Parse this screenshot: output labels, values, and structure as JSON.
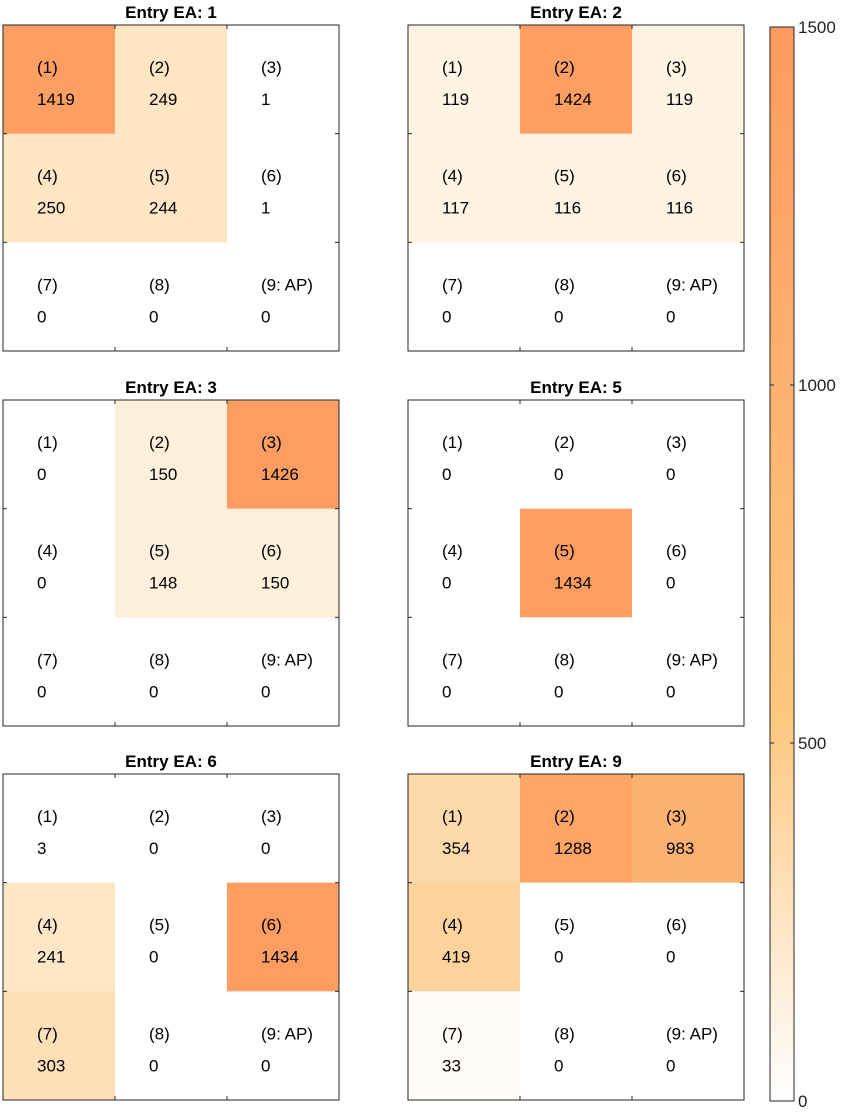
{
  "chart_data": {
    "type": "heatmap",
    "colorbar": {
      "range": [
        0,
        1500
      ],
      "ticks": [
        "0",
        "500",
        "1000",
        "1500"
      ],
      "tick_values": [
        0,
        500,
        1000,
        1500
      ],
      "colors": [
        "#ffffff",
        "#fdc882",
        "#fd9a5f"
      ]
    },
    "grid_labels": [
      "(1)",
      "(2)",
      "(3)",
      "(4)",
      "(5)",
      "(6)",
      "(7)",
      "(8)",
      "(9: AP)"
    ],
    "panels": [
      {
        "title": "Entry EA: 1",
        "values": [
          1419,
          249,
          1,
          250,
          244,
          1,
          0,
          0,
          0
        ]
      },
      {
        "title": "Entry EA: 2",
        "values": [
          119,
          1424,
          119,
          117,
          116,
          116,
          0,
          0,
          0
        ]
      },
      {
        "title": "Entry EA: 3",
        "values": [
          0,
          150,
          1426,
          0,
          148,
          150,
          0,
          0,
          0
        ]
      },
      {
        "title": "Entry EA: 5",
        "values": [
          0,
          0,
          0,
          0,
          1434,
          0,
          0,
          0,
          0
        ]
      },
      {
        "title": "Entry EA: 6",
        "values": [
          3,
          0,
          0,
          241,
          0,
          1434,
          303,
          0,
          0
        ]
      },
      {
        "title": "Entry EA: 9",
        "values": [
          354,
          1288,
          983,
          419,
          0,
          0,
          33,
          0,
          0
        ]
      }
    ]
  }
}
